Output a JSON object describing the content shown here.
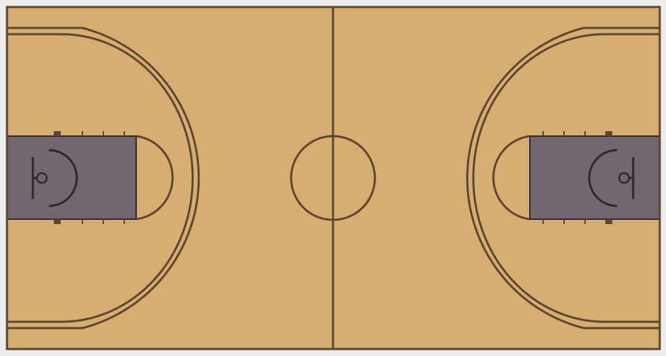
{
  "court": {
    "colors": {
      "page_background": "#ececec",
      "floor": "#d7ad72",
      "lines": "#5b4630",
      "paint": "#726670",
      "paint_markings": "#2f2630"
    },
    "elements": [
      "boundary",
      "half-court-line",
      "center-circle",
      "three-point-line-left",
      "three-point-line-right",
      "key-left",
      "key-right",
      "free-throw-circle-left",
      "free-throw-circle-right",
      "backboard-left",
      "backboard-right",
      "hoop-left",
      "hoop-right",
      "restricted-area-left",
      "restricted-area-right"
    ]
  }
}
